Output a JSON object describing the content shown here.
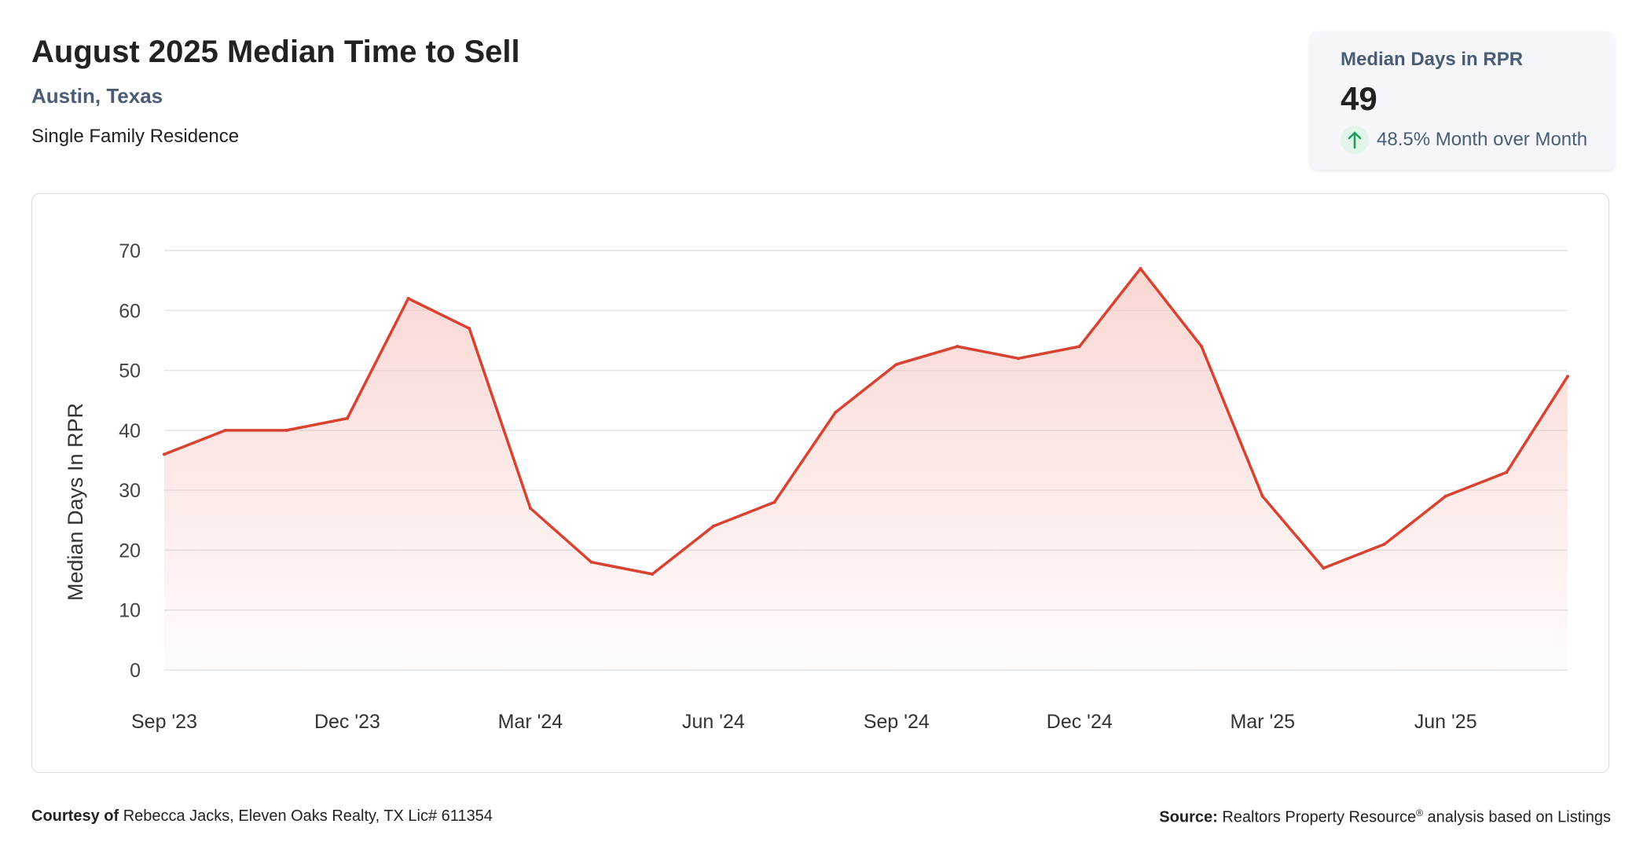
{
  "header": {
    "title": "August 2025 Median Time to Sell",
    "location": "Austin, Texas",
    "property_type": "Single Family Residence"
  },
  "stat_card": {
    "label": "Median Days in RPR",
    "value": "49",
    "change": "48.5% Month over Month",
    "change_icon": "arrow-up-icon",
    "change_color": "#1e9e5a"
  },
  "chart_data": {
    "type": "area",
    "ylabel": "Median Days In RPR",
    "ylim": [
      0,
      70
    ],
    "yticks": [
      0,
      10,
      20,
      30,
      40,
      50,
      60,
      70
    ],
    "x": [
      "Sep '23",
      "Oct '23",
      "Nov '23",
      "Dec '23",
      "Jan '24",
      "Feb '24",
      "Mar '24",
      "Apr '24",
      "May '24",
      "Jun '24",
      "Jul '24",
      "Aug '24",
      "Sep '24",
      "Oct '24",
      "Nov '24",
      "Dec '24",
      "Jan '25",
      "Feb '25",
      "Mar '25",
      "Apr '25",
      "May '25",
      "Jun '25",
      "Jul '25",
      "Aug '25"
    ],
    "xtick_labels": [
      "Sep '23",
      "Dec '23",
      "Mar '24",
      "Jun '24",
      "Sep '24",
      "Dec '24",
      "Mar '25",
      "Jun '25"
    ],
    "values": [
      36,
      40,
      40,
      42,
      62,
      57,
      27,
      18,
      16,
      24,
      28,
      43,
      51,
      54,
      52,
      54,
      67,
      54,
      29,
      17,
      21,
      29,
      33,
      49
    ],
    "grid": true,
    "line_color": "#d94131",
    "fill_color": "#f4b6ae"
  },
  "footer": {
    "courtesy_label": "Courtesy of",
    "courtesy_text": "Rebecca Jacks, Eleven Oaks Realty, TX Lic# 611354",
    "source_label": "Source:",
    "source_text_1": "Realtors Property Resource",
    "source_reg": "®",
    "source_text_2": " analysis based on Listings"
  }
}
